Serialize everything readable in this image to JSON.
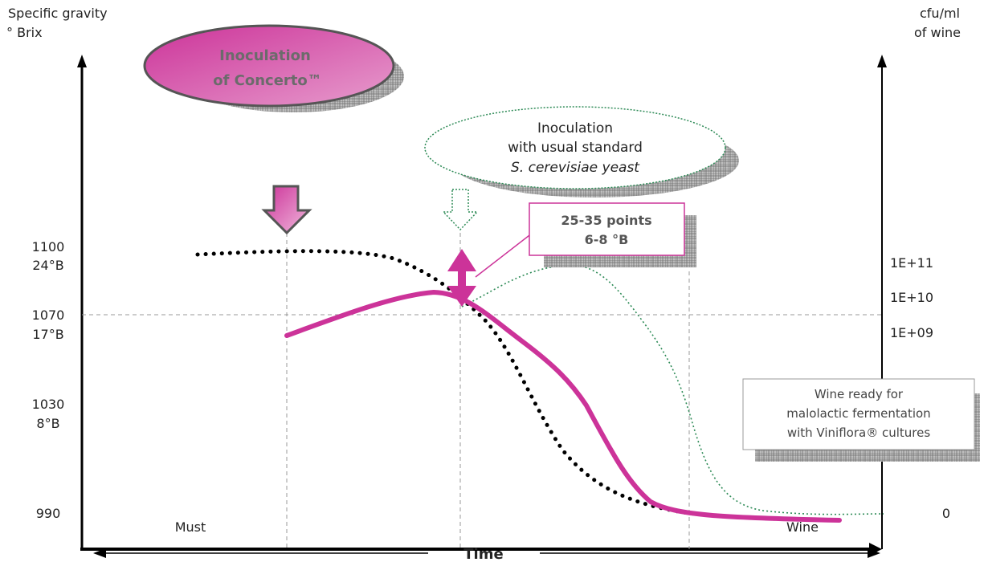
{
  "axes": {
    "left_title_line1": "Specific gravity",
    "left_title_line2": "° Brix",
    "right_title_line1": "cfu/ml",
    "right_title_line2": "of wine",
    "left_ticks": [
      {
        "line1": "1100",
        "line2": "24°B"
      },
      {
        "line1": "1070",
        "line2": "17°B"
      },
      {
        "line1": "1030",
        "line2": "8°B"
      },
      {
        "line1": "990",
        "line2": ""
      }
    ],
    "right_ticks": [
      "1E+11",
      "1E+10",
      "1E+09",
      "0"
    ],
    "x_start": "Must",
    "x_end": "Wine",
    "time_label": "Time"
  },
  "callouts": {
    "concerto_line1": "Inoculation",
    "concerto_line2": "of Concerto™",
    "standard_line1": "Inoculation",
    "standard_line2": "with usual standard",
    "standard_line3": "S. cerevisiae yeast",
    "drop_line1": "25-35 points",
    "drop_line2": "6-8 °B",
    "ready_line1": "Wine ready for",
    "ready_line2": "malolactic fermentation",
    "ready_line3": "with Viniflora® cultures"
  },
  "colors": {
    "magenta": "#cc3399",
    "green_dotted": "#2e8b57",
    "black": "#000000"
  }
}
